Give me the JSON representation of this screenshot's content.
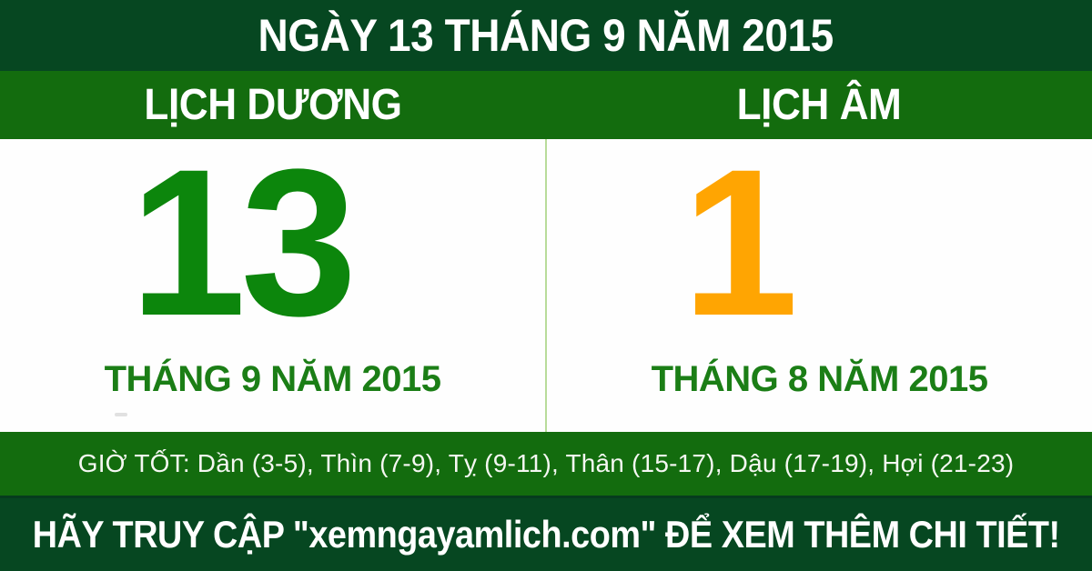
{
  "colors": {
    "dark_green": "#064721",
    "band_green": "#136c0e",
    "number_green": "#0c860c",
    "month_green": "#1b7e16",
    "lunar_orange": "#ffa502",
    "divider_green": "#b8dc9a",
    "panel_white": "#fefefe",
    "text_white": "#ffffff",
    "good_hours_text": "#f5f7f2"
  },
  "header": {
    "title": "NGÀY 13 THÁNG 9 NĂM 2015"
  },
  "calendar": {
    "solar": {
      "label": "LỊCH DƯƠNG",
      "day": "13",
      "month_year": "THÁNG 9 NĂM 2015"
    },
    "lunar": {
      "label": "LỊCH ÂM",
      "day": "1",
      "month_year": "THÁNG 8 NĂM 2015"
    }
  },
  "good_hours": {
    "text": "GIỜ TỐT: Dần (3-5), Thìn (7-9), Tỵ (9-11), Thân (15-17), Dậu (17-19), Hợi (21-23)"
  },
  "footer": {
    "text": "HÃY TRUY CẬP \"xemngayamlich.com\" ĐỂ XEM THÊM CHI TIẾT!"
  }
}
